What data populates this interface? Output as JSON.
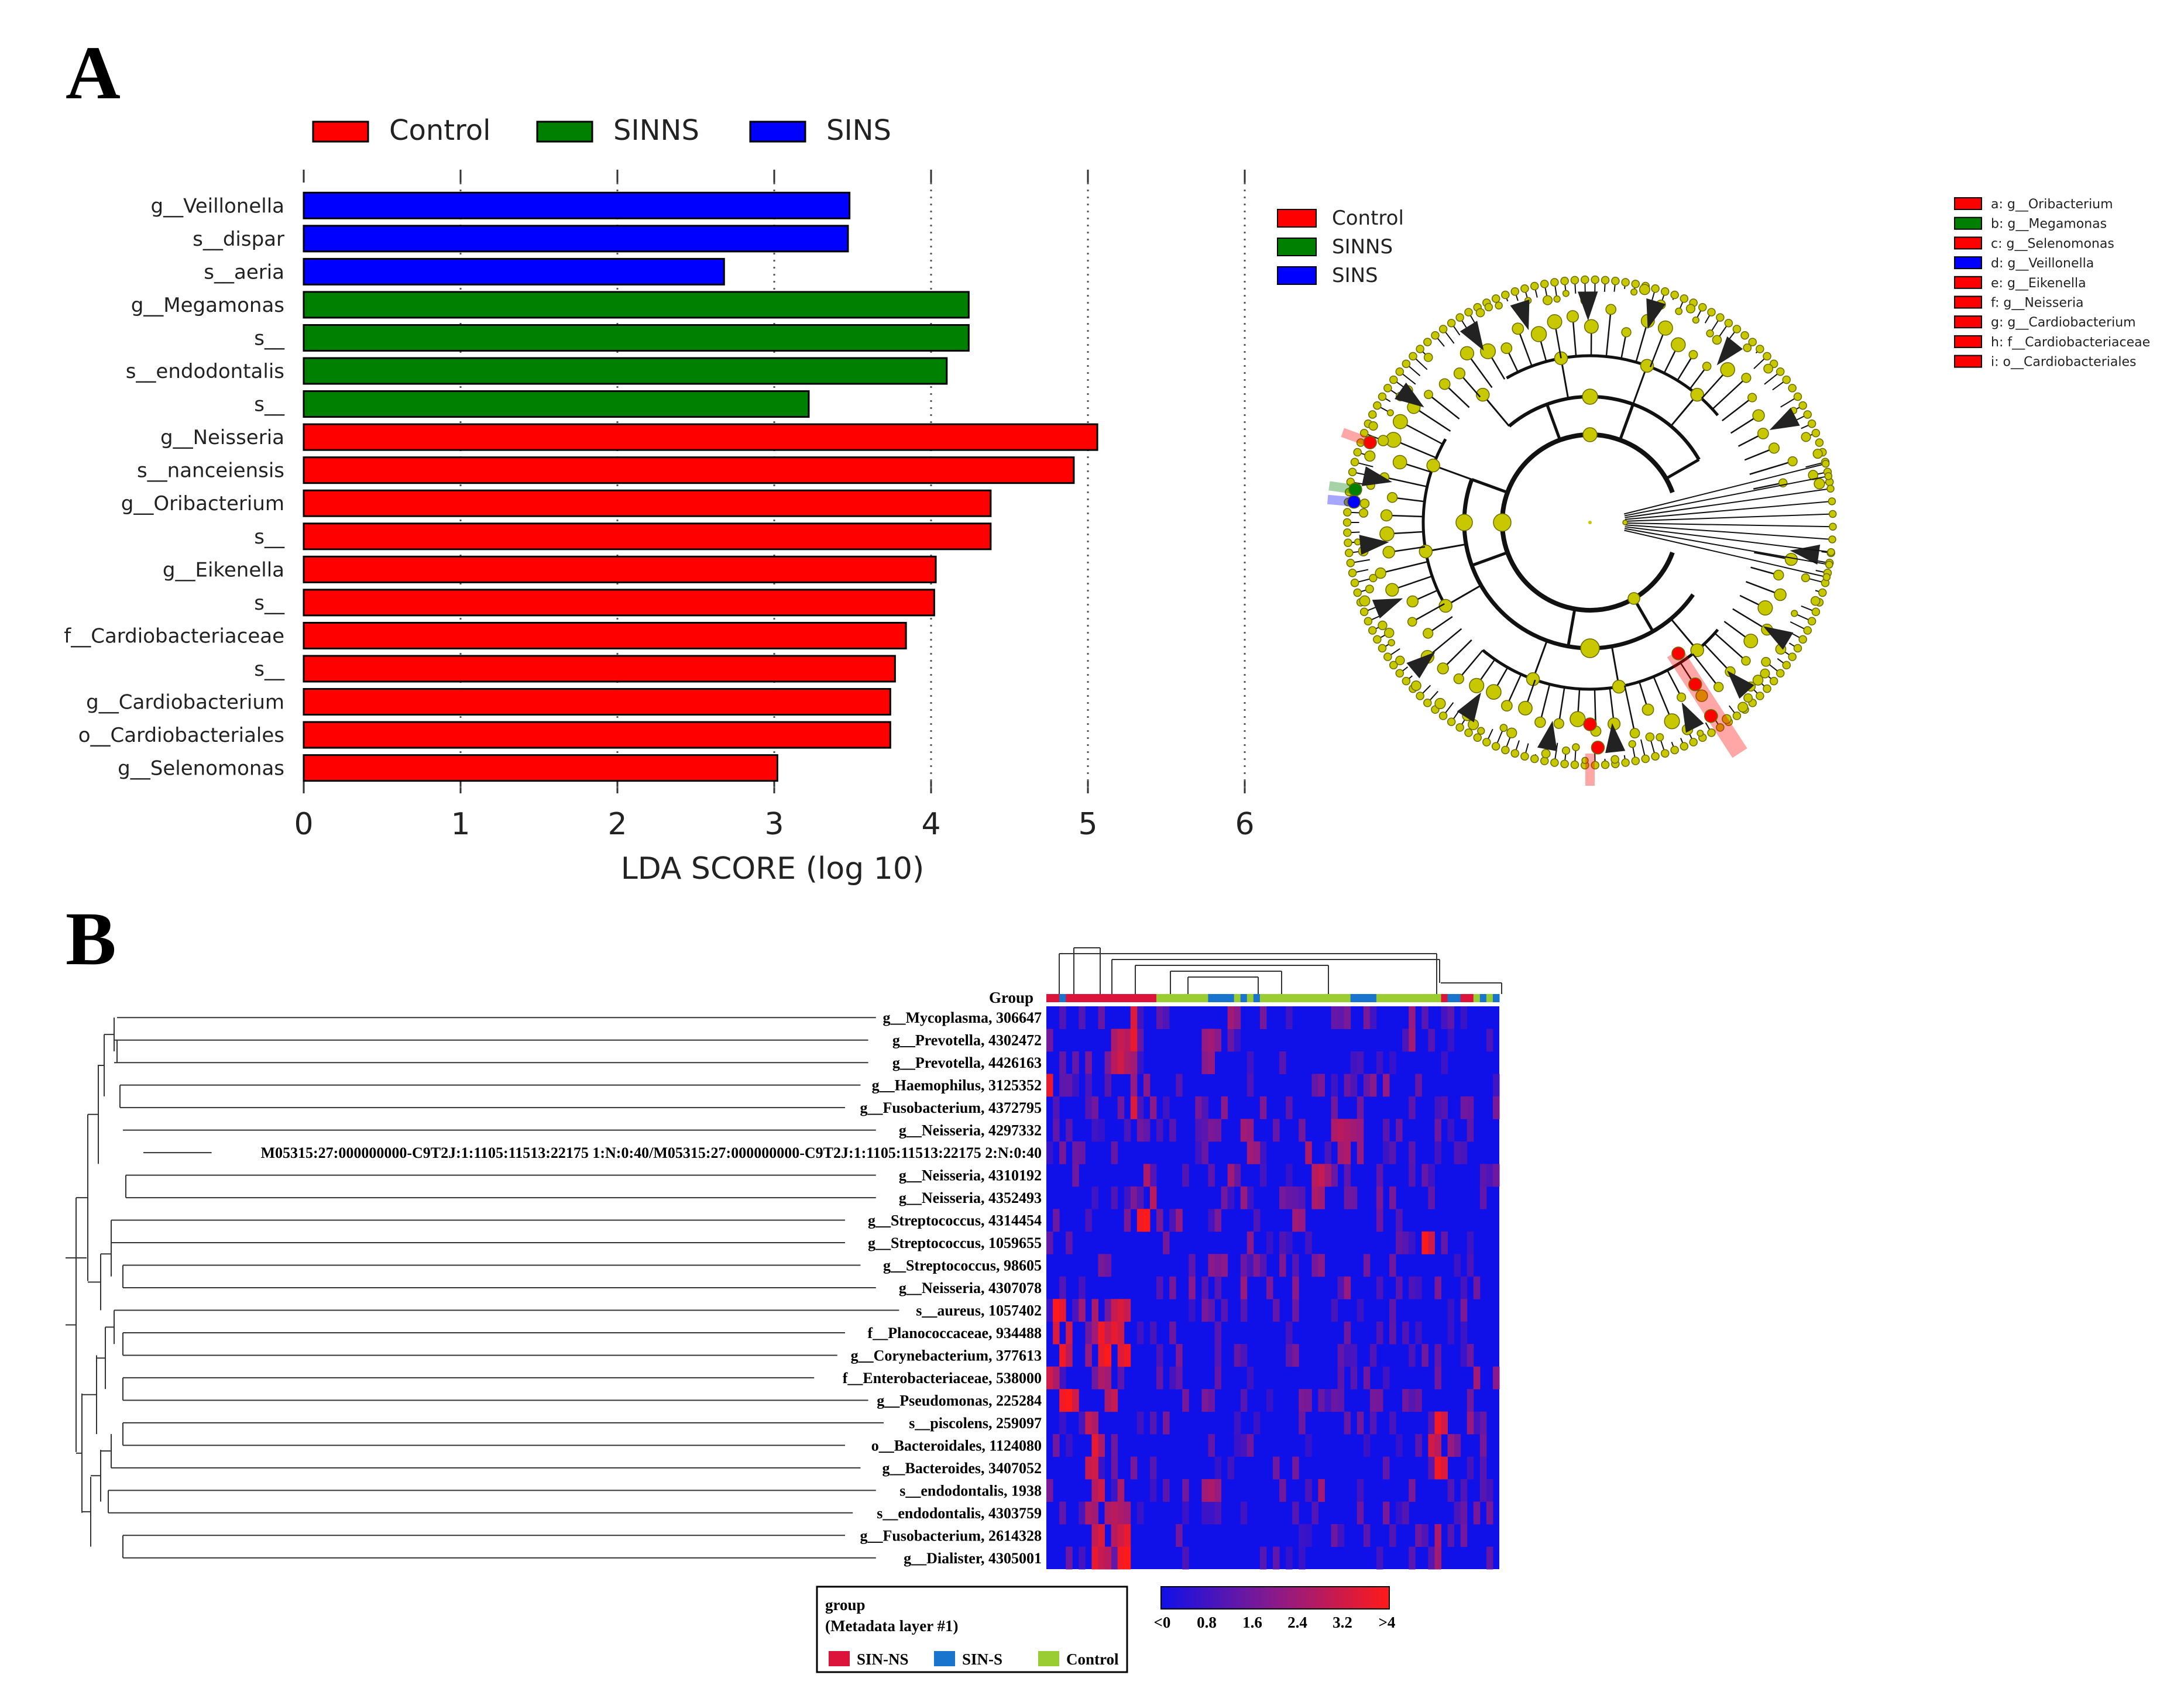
{
  "panels": {
    "a": "A",
    "b": "B"
  },
  "colors": {
    "control": "#ff0000",
    "sinns": "#008000",
    "sins": "#0000ff",
    "node": "#c8c800",
    "sin_ns": "#dc143c",
    "sin_s": "#1874cd",
    "ctrl_meta": "#9acd32",
    "heat_low": "#1010e8",
    "heat_high": "#ff1a1a"
  },
  "chart_data": [
    {
      "type": "bar",
      "orientation": "horizontal",
      "title": "",
      "xlabel": "LDA SCORE (log 10)",
      "ylabel": "",
      "xlim": [
        0,
        6
      ],
      "xticks": [
        "0",
        "1",
        "2",
        "3",
        "4",
        "5",
        "6"
      ],
      "legend": [
        {
          "key": "control",
          "label": "Control"
        },
        {
          "key": "sinns",
          "label": "SINNS"
        },
        {
          "key": "sins",
          "label": "SINS"
        }
      ],
      "categories": [
        "g__Veillonella",
        "s__dispar",
        "s__aeria",
        "g__Megamonas",
        "s__",
        "s__endodontalis",
        "s__",
        "g__Neisseria",
        "s__nanceiensis",
        "g__Oribacterium",
        "s__",
        "g__Eikenella",
        "s__",
        "f__Cardiobacteriaceae",
        "s__",
        "g__Cardiobacterium",
        "o__Cardiobacteriales",
        "g__Selenomonas"
      ],
      "groups": [
        "sins",
        "sins",
        "sins",
        "sinns",
        "sinns",
        "sinns",
        "sinns",
        "control",
        "control",
        "control",
        "control",
        "control",
        "control",
        "control",
        "control",
        "control",
        "control",
        "control"
      ],
      "values": [
        3.48,
        3.47,
        2.68,
        4.24,
        4.24,
        4.1,
        3.22,
        5.06,
        4.91,
        4.38,
        4.38,
        4.03,
        4.02,
        3.84,
        3.77,
        3.74,
        3.74,
        3.02
      ]
    },
    {
      "type": "cladogram",
      "legend": [
        {
          "key": "control",
          "label": "Control"
        },
        {
          "key": "sinns",
          "label": "SINNS"
        },
        {
          "key": "sins",
          "label": "SINS"
        }
      ],
      "taxa": [
        {
          "tag": "a",
          "label": "a: g__Oribacterium",
          "group": "control"
        },
        {
          "tag": "b",
          "label": "b: g__Megamonas",
          "group": "sinns"
        },
        {
          "tag": "c",
          "label": "c: g__Selenomonas",
          "group": "control"
        },
        {
          "tag": "d",
          "label": "d: g__Veillonella",
          "group": "sins"
        },
        {
          "tag": "e",
          "label": "e: g__Eikenella",
          "group": "control"
        },
        {
          "tag": "f",
          "label": "f: g__Neisseria",
          "group": "control"
        },
        {
          "tag": "g",
          "label": "g: g__Cardiobacterium",
          "group": "control"
        },
        {
          "tag": "h",
          "label": "h: f__Cardiobacteriaceae",
          "group": "control"
        },
        {
          "tag": "i",
          "label": "i: o__Cardiobacteriales",
          "group": "control"
        }
      ]
    },
    {
      "type": "heatmap",
      "group_label": "Group",
      "rows": [
        "g__Mycoplasma, 306647",
        "g__Prevotella, 4302472",
        "g__Prevotella, 4426163",
        "g__Haemophilus, 3125352",
        "g__Fusobacterium, 4372795",
        "g__Neisseria, 4297332",
        "M05315:27:000000000-C9T2J:1:1105:11513:22175 1:N:0:40/M05315:27:000000000-C9T2J:1:1105:11513:22175 2:N:0:40",
        "g__Neisseria, 4310192",
        "g__Neisseria, 4352493",
        "g__Streptococcus, 4314454",
        "g__Streptococcus, 1059655",
        "g__Streptococcus, 98605",
        "g__Neisseria, 4307078",
        "s__aureus, 1057402",
        "f__Planococcaceae, 934488",
        "g__Corynebacterium, 377613",
        "f__Enterobacteriaceae, 538000",
        "g__Pseudomonas, 225284",
        "s__piscolens, 259097",
        "o__Bacteroidales, 1124080",
        "g__Bacteroides, 3407052",
        "s__endodontalis, 1938",
        "s__endodontalis, 4303759",
        "g__Fusobacterium, 2614328",
        "g__Dialister, 4305001"
      ],
      "colorbar": {
        "ticks": [
          "<0",
          "0.8",
          "1.6",
          "2.4",
          "3.2",
          ">4"
        ],
        "min": 0,
        "max": 4
      },
      "meta_legend": {
        "title": "group",
        "subtitle": "(Metadata layer #1)",
        "items": [
          {
            "key": "sin_ns",
            "label": "SIN-NS"
          },
          {
            "key": "sin_s",
            "label": "SIN-S"
          },
          {
            "key": "ctrl_meta",
            "label": "Control"
          }
        ]
      },
      "n_columns": 70,
      "column_groups": "rrbrrrrrrrrrrrrrrccccccccbbbbcbcbccccccccccccccbbbbccccccccccrbbrrcbcbb",
      "hot_cells": [
        [
          0,
          13,
          3.4
        ],
        [
          0,
          28,
          2.4
        ],
        [
          0,
          29,
          2.0
        ],
        [
          0,
          56,
          2.2
        ],
        [
          1,
          10,
          2.6
        ],
        [
          1,
          11,
          3.0
        ],
        [
          1,
          12,
          2.8
        ],
        [
          1,
          13,
          3.6
        ],
        [
          1,
          24,
          2.2
        ],
        [
          1,
          25,
          2.4
        ],
        [
          1,
          26,
          2.0
        ],
        [
          1,
          56,
          2.4
        ],
        [
          2,
          10,
          2.8
        ],
        [
          2,
          11,
          3.2
        ],
        [
          2,
          12,
          2.6
        ],
        [
          2,
          13,
          2.4
        ],
        [
          2,
          24,
          2.0
        ],
        [
          2,
          25,
          2.2
        ],
        [
          3,
          0,
          3.6
        ],
        [
          3,
          13,
          2.2
        ],
        [
          3,
          15,
          2.0
        ],
        [
          3,
          50,
          2.0
        ],
        [
          3,
          52,
          2.2
        ],
        [
          4,
          13,
          3.4
        ],
        [
          4,
          16,
          2.0
        ],
        [
          4,
          27,
          2.0
        ],
        [
          4,
          33,
          1.8
        ],
        [
          5,
          30,
          2.4
        ],
        [
          5,
          31,
          2.2
        ],
        [
          5,
          44,
          2.6
        ],
        [
          5,
          45,
          2.8
        ],
        [
          5,
          46,
          2.6
        ],
        [
          5,
          47,
          2.4
        ],
        [
          5,
          48,
          2.2
        ],
        [
          6,
          31,
          2.4
        ],
        [
          6,
          32,
          2.2
        ],
        [
          6,
          40,
          2.6
        ],
        [
          6,
          45,
          2.4
        ],
        [
          6,
          46,
          2.6
        ],
        [
          6,
          48,
          2.2
        ],
        [
          7,
          15,
          2.6
        ],
        [
          7,
          28,
          2.4
        ],
        [
          7,
          41,
          2.8
        ],
        [
          7,
          42,
          3.0
        ],
        [
          7,
          43,
          2.4
        ],
        [
          8,
          16,
          2.8
        ],
        [
          8,
          30,
          2.2
        ],
        [
          8,
          41,
          2.6
        ],
        [
          8,
          42,
          2.4
        ],
        [
          9,
          14,
          3.8
        ],
        [
          9,
          15,
          4.0
        ],
        [
          9,
          20,
          2.2
        ],
        [
          9,
          38,
          2.4
        ],
        [
          9,
          39,
          2.2
        ],
        [
          10,
          31,
          2.0
        ],
        [
          10,
          58,
          4.0
        ],
        [
          10,
          59,
          3.2
        ],
        [
          11,
          25,
          2.0
        ],
        [
          11,
          27,
          2.0
        ],
        [
          11,
          36,
          1.8
        ],
        [
          11,
          42,
          2.0
        ],
        [
          12,
          22,
          2.0
        ],
        [
          12,
          30,
          2.2
        ],
        [
          12,
          38,
          2.0
        ],
        [
          12,
          46,
          2.2
        ],
        [
          13,
          1,
          4.0
        ],
        [
          13,
          2,
          3.6
        ],
        [
          13,
          5,
          2.4
        ],
        [
          13,
          7,
          2.6
        ],
        [
          13,
          10,
          3.0
        ],
        [
          13,
          11,
          3.4
        ],
        [
          13,
          12,
          3.0
        ],
        [
          14,
          1,
          3.4
        ],
        [
          14,
          3,
          3.2
        ],
        [
          14,
          7,
          2.4
        ],
        [
          14,
          8,
          3.8
        ],
        [
          14,
          9,
          3.0
        ],
        [
          14,
          10,
          3.6
        ],
        [
          14,
          11,
          3.2
        ],
        [
          15,
          2,
          3.8
        ],
        [
          15,
          3,
          2.8
        ],
        [
          15,
          6,
          2.2
        ],
        [
          15,
          8,
          3.6
        ],
        [
          15,
          9,
          4.0
        ],
        [
          15,
          11,
          3.4
        ],
        [
          15,
          12,
          3.8
        ],
        [
          16,
          0,
          3.2
        ],
        [
          16,
          1,
          2.6
        ],
        [
          16,
          8,
          2.6
        ],
        [
          16,
          9,
          2.4
        ],
        [
          16,
          66,
          2.4
        ],
        [
          16,
          69,
          2.0
        ],
        [
          17,
          2,
          3.8
        ],
        [
          17,
          3,
          4.0
        ],
        [
          17,
          4,
          3.2
        ],
        [
          17,
          9,
          2.6
        ],
        [
          17,
          10,
          3.0
        ],
        [
          18,
          6,
          3.0
        ],
        [
          18,
          7,
          2.6
        ],
        [
          18,
          60,
          3.8
        ],
        [
          18,
          61,
          3.2
        ],
        [
          18,
          65,
          2.2
        ],
        [
          19,
          7,
          3.6
        ],
        [
          19,
          8,
          2.6
        ],
        [
          19,
          59,
          3.2
        ],
        [
          19,
          60,
          2.8
        ],
        [
          19,
          62,
          2.2
        ],
        [
          20,
          6,
          3.0
        ],
        [
          20,
          7,
          3.2
        ],
        [
          20,
          60,
          3.8
        ],
        [
          20,
          61,
          3.4
        ],
        [
          21,
          7,
          2.8
        ],
        [
          21,
          8,
          3.2
        ],
        [
          21,
          11,
          2.6
        ],
        [
          21,
          24,
          2.4
        ],
        [
          21,
          25,
          2.6
        ],
        [
          21,
          26,
          2.2
        ],
        [
          21,
          42,
          2.4
        ],
        [
          22,
          6,
          2.6
        ],
        [
          22,
          7,
          2.4
        ],
        [
          22,
          9,
          2.6
        ],
        [
          22,
          10,
          2.8
        ],
        [
          22,
          11,
          2.6
        ],
        [
          22,
          12,
          2.4
        ],
        [
          23,
          7,
          3.0
        ],
        [
          23,
          8,
          3.4
        ],
        [
          23,
          10,
          2.8
        ],
        [
          23,
          11,
          3.2
        ],
        [
          23,
          12,
          3.6
        ],
        [
          23,
          60,
          2.6
        ],
        [
          24,
          7,
          3.6
        ],
        [
          24,
          8,
          3.0
        ],
        [
          24,
          9,
          2.8
        ],
        [
          24,
          11,
          3.8
        ],
        [
          24,
          12,
          4.0
        ],
        [
          24,
          60,
          2.4
        ]
      ]
    }
  ]
}
